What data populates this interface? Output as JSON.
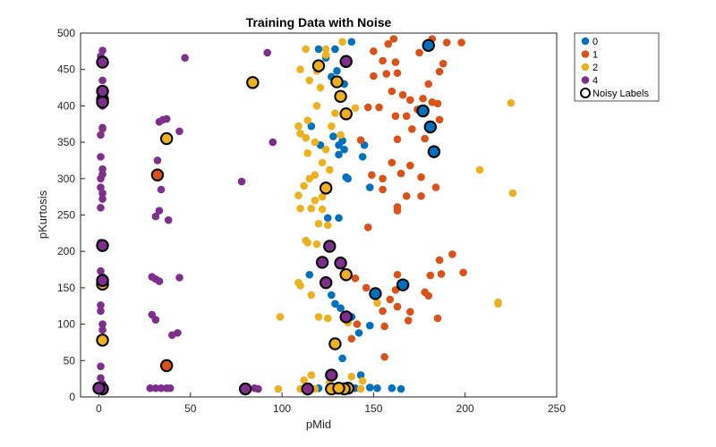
{
  "chart_data": {
    "type": "scatter",
    "title": "Training Data with Noise",
    "xlabel": "pMid",
    "ylabel": "pKurtosis",
    "xlim": [
      -10,
      250
    ],
    "ylim": [
      0,
      500
    ],
    "xticks": [
      0,
      50,
      100,
      150,
      200,
      250
    ],
    "yticks": [
      0,
      50,
      100,
      150,
      200,
      250,
      300,
      350,
      400,
      450,
      500
    ],
    "grid": false,
    "legend_position": "outside top-right",
    "noisy_label": "Noisy Labels",
    "series": [
      {
        "name": "0",
        "color": "#0072BD",
        "points": [
          [
            120,
            478
          ],
          [
            129,
            478
          ],
          [
            138,
            488
          ],
          [
            124,
            466
          ],
          [
            130,
            448
          ],
          [
            134,
            430
          ],
          [
            127,
            440
          ],
          [
            116,
            372
          ],
          [
            121,
            346
          ],
          [
            128,
            358
          ],
          [
            131,
            346
          ],
          [
            133,
            352
          ],
          [
            134,
            340
          ],
          [
            131,
            333
          ],
          [
            145,
            346
          ],
          [
            144,
            330
          ],
          [
            135,
            302
          ],
          [
            136,
            300
          ],
          [
            148,
            288
          ],
          [
            125,
            246
          ],
          [
            131,
            246
          ],
          [
            115,
            168
          ],
          [
            124,
            158
          ],
          [
            127,
            140
          ],
          [
            129,
            128
          ],
          [
            132,
            122
          ],
          [
            138,
            110
          ],
          [
            142,
            88
          ],
          [
            148,
            98
          ],
          [
            133,
            53
          ],
          [
            143,
            30
          ],
          [
            148,
            13
          ],
          [
            152,
            12
          ],
          [
            160,
            12
          ],
          [
            165,
            11
          ],
          [
            120,
            12
          ],
          [
            140,
            12
          ],
          [
            177,
            393
          ],
          [
            181,
            371
          ],
          [
            183,
            337
          ],
          [
            166,
            154
          ],
          [
            151,
            142
          ],
          [
            180,
            483
          ]
        ],
        "noisy": [
          [
            177,
            393
          ],
          [
            181,
            371
          ],
          [
            183,
            337
          ],
          [
            166,
            154
          ],
          [
            151,
            142
          ],
          [
            180,
            483
          ]
        ]
      },
      {
        "name": "1",
        "color": "#D95319",
        "points": [
          [
            150,
            475
          ],
          [
            158,
            485
          ],
          [
            161,
            492
          ],
          [
            175,
            473
          ],
          [
            182,
            492
          ],
          [
            186,
            447
          ],
          [
            190,
            487
          ],
          [
            198,
            487
          ],
          [
            155,
            462
          ],
          [
            162,
            460
          ],
          [
            150,
            441
          ],
          [
            157,
            444
          ],
          [
            163,
            445
          ],
          [
            180,
            430
          ],
          [
            188,
            458
          ],
          [
            160,
            420
          ],
          [
            166,
            415
          ],
          [
            170,
            408
          ],
          [
            177,
            410
          ],
          [
            185,
            403
          ],
          [
            147,
            398
          ],
          [
            153,
            398
          ],
          [
            162,
            386
          ],
          [
            168,
            386
          ],
          [
            174,
            395
          ],
          [
            186,
            381
          ],
          [
            182,
            405
          ],
          [
            163,
            354
          ],
          [
            171,
            368
          ],
          [
            178,
            355
          ],
          [
            143,
            353
          ],
          [
            149,
            305
          ],
          [
            155,
            300
          ],
          [
            160,
            322
          ],
          [
            165,
            307
          ],
          [
            170,
            318
          ],
          [
            176,
            302
          ],
          [
            184,
            288
          ],
          [
            155,
            285
          ],
          [
            168,
            276
          ],
          [
            176,
            276
          ],
          [
            163,
            261
          ],
          [
            163,
            256
          ],
          [
            147,
            233
          ],
          [
            193,
            196
          ],
          [
            186,
            188
          ],
          [
            199,
            171
          ],
          [
            187,
            169
          ],
          [
            181,
            167
          ],
          [
            163,
            168
          ],
          [
            140,
            163
          ],
          [
            146,
            150
          ],
          [
            162,
            147
          ],
          [
            178,
            144
          ],
          [
            180,
            139
          ],
          [
            159,
            134
          ],
          [
            163,
            124
          ],
          [
            155,
            118
          ],
          [
            170,
            117
          ],
          [
            185,
            108
          ],
          [
            141,
            100
          ],
          [
            156,
            97
          ],
          [
            169,
            105
          ],
          [
            138,
            80
          ],
          [
            156,
            55
          ],
          [
            2,
            368
          ],
          [
            32,
            305
          ],
          [
            37,
            43
          ]
        ],
        "noisy": [
          [
            32,
            305
          ],
          [
            37,
            43
          ]
        ]
      },
      {
        "name": "2",
        "color": "#EDB120",
        "points": [
          [
            113,
            478
          ],
          [
            124,
            478
          ],
          [
            133,
            488
          ],
          [
            110,
            450
          ],
          [
            119,
            448
          ],
          [
            124,
            470
          ],
          [
            115,
            435
          ],
          [
            121,
            425
          ],
          [
            119,
            400
          ],
          [
            114,
            380
          ],
          [
            109,
            372
          ],
          [
            110,
            362
          ],
          [
            113,
            356
          ],
          [
            118,
            350
          ],
          [
            124,
            340
          ],
          [
            127,
            372
          ],
          [
            129,
            390
          ],
          [
            140,
            397
          ],
          [
            132,
            360
          ],
          [
            114,
            335
          ],
          [
            122,
            322
          ],
          [
            112,
            290
          ],
          [
            115,
            300
          ],
          [
            118,
            305
          ],
          [
            126,
            312
          ],
          [
            109,
            277
          ],
          [
            118,
            270
          ],
          [
            122,
            275
          ],
          [
            110,
            259
          ],
          [
            116,
            259
          ],
          [
            122,
            258
          ],
          [
            120,
            238
          ],
          [
            125,
            236
          ],
          [
            113,
            215
          ],
          [
            114,
            212
          ],
          [
            119,
            210
          ],
          [
            109,
            157
          ],
          [
            110,
            153
          ],
          [
            99,
            110
          ],
          [
            116,
            140
          ],
          [
            120,
            110
          ],
          [
            125,
            108
          ],
          [
            136,
            102
          ],
          [
            152,
            129
          ],
          [
            112,
            23
          ],
          [
            116,
            30
          ],
          [
            126,
            20
          ],
          [
            138,
            28
          ],
          [
            144,
            22
          ],
          [
            98,
            11
          ],
          [
            110,
            11
          ],
          [
            118,
            11
          ],
          [
            131,
            11
          ],
          [
            137,
            11
          ],
          [
            143,
            11
          ],
          [
            208,
            312
          ],
          [
            225,
            404
          ],
          [
            226,
            280
          ],
          [
            218,
            130
          ],
          [
            218,
            128
          ],
          [
            120,
            455
          ],
          [
            130,
            433
          ],
          [
            132,
            413
          ],
          [
            135,
            389
          ],
          [
            124,
            287
          ],
          [
            135,
            168
          ],
          [
            129,
            73
          ],
          [
            37,
            355
          ],
          [
            84,
            432
          ],
          [
            2,
            78
          ],
          [
            2,
            155
          ],
          [
            136,
            12
          ],
          [
            127,
            11
          ],
          [
            134,
            11
          ],
          [
            131,
            12
          ]
        ],
        "noisy": [
          [
            120,
            455
          ],
          [
            130,
            433
          ],
          [
            132,
            413
          ],
          [
            135,
            389
          ],
          [
            124,
            287
          ],
          [
            135,
            168
          ],
          [
            129,
            73
          ],
          [
            37,
            355
          ],
          [
            84,
            432
          ],
          [
            2,
            78
          ],
          [
            2,
            155
          ],
          [
            136,
            12
          ],
          [
            127,
            11
          ],
          [
            134,
            11
          ],
          [
            131,
            12
          ]
        ]
      },
      {
        "name": "4",
        "color": "#7E2F8E",
        "points": [
          [
            2,
            476
          ],
          [
            1,
            468
          ],
          [
            2,
            463
          ],
          [
            2,
            435
          ],
          [
            2,
            413
          ],
          [
            2,
            400
          ],
          [
            2,
            370
          ],
          [
            1,
            360
          ],
          [
            1,
            330
          ],
          [
            2,
            313
          ],
          [
            2,
            306
          ],
          [
            1,
            300
          ],
          [
            1,
            288
          ],
          [
            2,
            280
          ],
          [
            2,
            272
          ],
          [
            1,
            260
          ],
          [
            1,
            212
          ],
          [
            1,
            173
          ],
          [
            2,
            165
          ],
          [
            1,
            126
          ],
          [
            1,
            118
          ],
          [
            2,
            100
          ],
          [
            2,
            92
          ],
          [
            1,
            42
          ],
          [
            1,
            26
          ],
          [
            2,
            18
          ],
          [
            1,
            10
          ],
          [
            47,
            466
          ],
          [
            92,
            473
          ],
          [
            33,
            378
          ],
          [
            35,
            381
          ],
          [
            37,
            382
          ],
          [
            44,
            365
          ],
          [
            95,
            350
          ],
          [
            32,
            325
          ],
          [
            34,
            285
          ],
          [
            33,
            256
          ],
          [
            31,
            248
          ],
          [
            38,
            243
          ],
          [
            78,
            296
          ],
          [
            29,
            165
          ],
          [
            31,
            162
          ],
          [
            33,
            159
          ],
          [
            44,
            164
          ],
          [
            29,
            113
          ],
          [
            31,
            106
          ],
          [
            40,
            85
          ],
          [
            43,
            88
          ],
          [
            28,
            12
          ],
          [
            31,
            12
          ],
          [
            34,
            12
          ],
          [
            37,
            12
          ],
          [
            39,
            12
          ],
          [
            87,
            11
          ],
          [
            135,
            461
          ],
          [
            2,
            460
          ],
          [
            2,
            409
          ],
          [
            2,
            405
          ],
          [
            2,
            420
          ],
          [
            2,
            208
          ],
          [
            2,
            160
          ],
          [
            122,
            185
          ],
          [
            132,
            184
          ],
          [
            126,
            207
          ],
          [
            124,
            157
          ],
          [
            135,
            110
          ],
          [
            127,
            30
          ],
          [
            80,
            11
          ],
          [
            114,
            11
          ],
          [
            2,
            11
          ],
          [
            0,
            12
          ],
          [
            85,
            12
          ],
          [
            138,
            12
          ]
        ],
        "noisy": [
          [
            135,
            461
          ],
          [
            2,
            460
          ],
          [
            2,
            409
          ],
          [
            2,
            405
          ],
          [
            2,
            420
          ],
          [
            2,
            208
          ],
          [
            2,
            160
          ],
          [
            122,
            185
          ],
          [
            132,
            184
          ],
          [
            126,
            207
          ],
          [
            124,
            157
          ],
          [
            135,
            110
          ],
          [
            127,
            30
          ],
          [
            80,
            11
          ],
          [
            114,
            11
          ],
          [
            2,
            11
          ],
          [
            0,
            12
          ]
        ]
      }
    ]
  }
}
